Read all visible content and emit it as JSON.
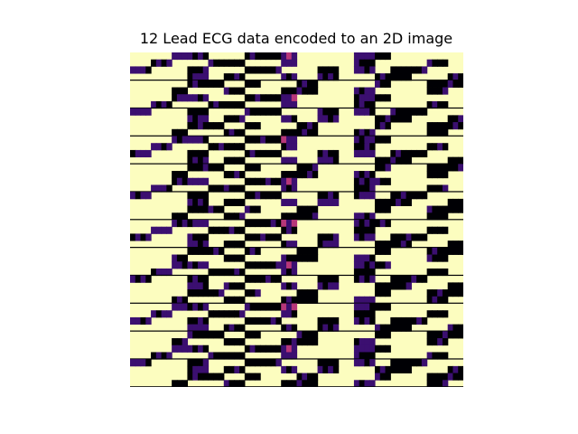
{
  "chart_data": {
    "type": "heatmap",
    "title": "12 Lead ECG data encoded to an 2D image",
    "xlabel": "",
    "ylabel": "",
    "axes_visible": false,
    "colormap": "magma",
    "colors": {
      "low": "#000004",
      "mid_low": "#3b0f70",
      "mid": "#b73779",
      "mid_high": "#fc8961",
      "high": "#fcfdbf"
    },
    "grid": {
      "n_rows": 48,
      "n_cols": 64,
      "note_values": "normalized intensity 0 (dark) to 1 (light)",
      "row_profiles": [
        [
          0.9,
          0.9,
          0.1,
          0.1,
          0.8,
          0.9,
          0.0,
          0.0,
          0.2,
          0.9,
          0.9,
          0.9,
          0.1,
          0.0,
          0.9,
          0.9,
          0.9,
          0.9
        ],
        [
          0.9,
          0.0,
          0.9,
          0.9,
          0.1,
          0.9,
          0.9,
          0.0,
          0.0,
          0.9,
          0.9,
          0.1,
          0.9,
          0.9,
          0.9,
          0.0,
          0.9,
          0.9
        ],
        [
          0.1,
          0.9,
          0.0,
          0.0,
          0.9,
          0.9,
          0.1,
          0.9,
          0.9,
          0.0,
          0.9,
          0.9,
          0.0,
          0.0,
          0.9,
          0.9,
          0.0,
          0.9
        ],
        [
          0.9,
          0.1,
          0.9,
          0.9,
          0.0,
          0.0,
          0.9,
          0.9,
          0.0,
          0.9,
          0.9,
          0.9,
          0.1,
          0.9,
          0.0,
          0.9,
          0.9,
          0.1
        ],
        [
          0.0,
          0.9,
          0.9,
          0.0,
          0.9,
          0.9,
          0.9,
          0.0,
          0.9,
          0.9,
          0.0,
          0.0,
          0.9,
          0.9,
          0.9,
          0.0,
          0.0,
          0.9
        ],
        [
          0.9,
          0.9,
          0.0,
          0.9,
          0.9,
          0.0,
          0.0,
          0.9,
          0.9,
          0.1,
          0.9,
          0.9,
          0.9,
          0.0,
          0.9,
          0.9,
          0.9,
          0.0
        ]
      ]
    }
  }
}
